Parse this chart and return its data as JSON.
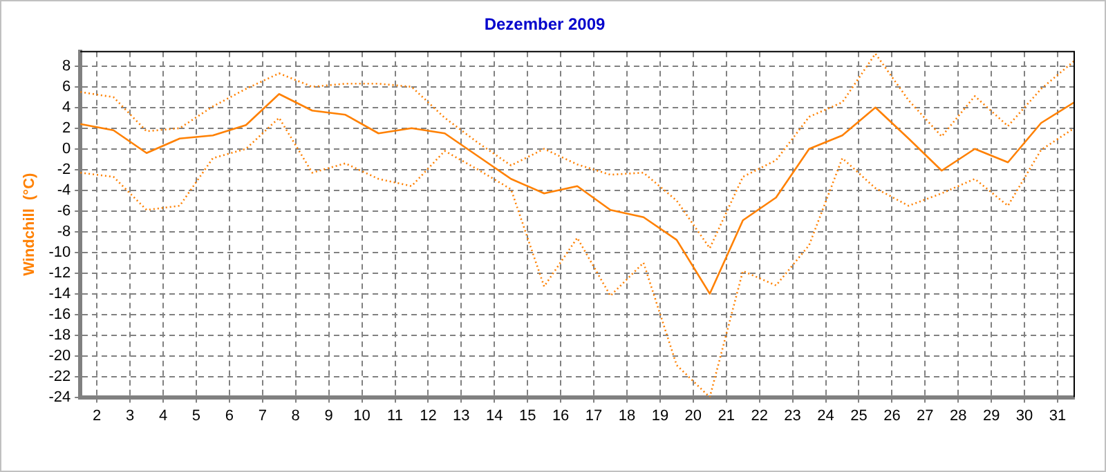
{
  "chart_data": {
    "type": "line",
    "title": "Dezember 2009",
    "ylabel": "Windchill  (°C)",
    "x": [
      1.5,
      2.5,
      3.5,
      4.5,
      5.5,
      6.5,
      7.5,
      8.5,
      9.5,
      10.5,
      11.5,
      12.5,
      13.5,
      14.5,
      15.5,
      16.5,
      17.5,
      18.5,
      19.5,
      20.5,
      21.5,
      22.5,
      23.5,
      24.5,
      25.5,
      26.5,
      27.5,
      28.5,
      29.5,
      30.5,
      31.5
    ],
    "series": [
      {
        "color": "#ff8000",
        "line_style": "solid",
        "values": [
          2.4,
          1.8,
          -0.4,
          1.0,
          1.3,
          2.3,
          5.3,
          3.7,
          3.3,
          1.5,
          2.0,
          1.5,
          -0.7,
          -2.9,
          -4.3,
          -3.6,
          -5.9,
          -6.6,
          -8.8,
          -14.0,
          -6.9,
          -4.7,
          0,
          1.3,
          4.0,
          1.0,
          -2.1,
          0,
          -1.3,
          2.5,
          4.5
        ]
      },
      {
        "color": "#ff8000",
        "line_style": "dotted",
        "values": [
          5.5,
          5.0,
          1.7,
          2.0,
          4.1,
          5.8,
          7.3,
          6.0,
          6.3,
          6.3,
          6.0,
          3.0,
          0.6,
          -1.6,
          0,
          -1.5,
          -2.5,
          -2.3,
          -5.0,
          -9.6,
          -2.7,
          -1.1,
          3.1,
          4.5,
          9.2,
          4.7,
          1.2,
          5.1,
          2.2,
          5.8,
          8.5
        ]
      },
      {
        "color": "#ff8000",
        "line_style": "dotted",
        "values": [
          -2.3,
          -2.7,
          -5.9,
          -5.5,
          -0.9,
          0,
          3.0,
          -2.3,
          -1.4,
          -2.9,
          -3.6,
          -0.2,
          -2.0,
          -3.9,
          -13.3,
          -8.6,
          -14.2,
          -11.0,
          -20.9,
          -24,
          -11.8,
          -13.2,
          -9.3,
          -0.9,
          -3.8,
          -5.5,
          -4.3,
          -2.9,
          -5.5,
          -0.1,
          2.0
        ]
      }
    ],
    "xlim": [
      1.5,
      31.5
    ],
    "xticks": [
      2,
      3,
      4,
      5,
      6,
      7,
      8,
      9,
      10,
      11,
      12,
      13,
      14,
      15,
      16,
      17,
      18,
      19,
      20,
      21,
      22,
      23,
      24,
      25,
      26,
      27,
      28,
      29,
      30,
      31
    ],
    "ylim": [
      -24,
      9.4
    ],
    "yticks": [
      -24,
      -22,
      -20,
      -18,
      -16,
      -14,
      -12,
      -10,
      -8,
      -6,
      -4,
      -2,
      0,
      2,
      4,
      6,
      8
    ],
    "grid": true,
    "legend": false,
    "marker": "none"
  }
}
